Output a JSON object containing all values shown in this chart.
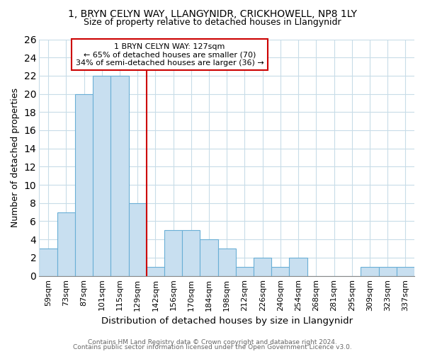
{
  "title1": "1, BRYN CELYN WAY, LLANGYNIDR, CRICKHOWELL, NP8 1LY",
  "title2": "Size of property relative to detached houses in Llangynidr",
  "xlabel": "Distribution of detached houses by size in Llangynidr",
  "ylabel": "Number of detached properties",
  "bar_labels": [
    "59sqm",
    "73sqm",
    "87sqm",
    "101sqm",
    "115sqm",
    "129sqm",
    "142sqm",
    "156sqm",
    "170sqm",
    "184sqm",
    "198sqm",
    "212sqm",
    "226sqm",
    "240sqm",
    "254sqm",
    "268sqm",
    "281sqm",
    "295sqm",
    "309sqm",
    "323sqm",
    "337sqm"
  ],
  "bar_values": [
    3,
    7,
    20,
    22,
    22,
    8,
    1,
    5,
    5,
    4,
    3,
    1,
    2,
    1,
    2,
    0,
    0,
    0,
    1,
    1,
    1
  ],
  "bar_color": "#c8dff0",
  "bar_edge_color": "#6aafd6",
  "vline_color": "#cc0000",
  "annotation_title": "1 BRYN CELYN WAY: 127sqm",
  "annotation_line2": "← 65% of detached houses are smaller (70)",
  "annotation_line3": "34% of semi-detached houses are larger (36) →",
  "annotation_box_color": "#ffffff",
  "annotation_box_edge": "#cc0000",
  "ylim": [
    0,
    26
  ],
  "yticks": [
    0,
    2,
    4,
    6,
    8,
    10,
    12,
    14,
    16,
    18,
    20,
    22,
    24,
    26
  ],
  "footer1": "Contains HM Land Registry data © Crown copyright and database right 2024.",
  "footer2": "Contains public sector information licensed under the Open Government Licence v3.0.",
  "bg_color": "#ffffff",
  "grid_color": "#c8dce8"
}
